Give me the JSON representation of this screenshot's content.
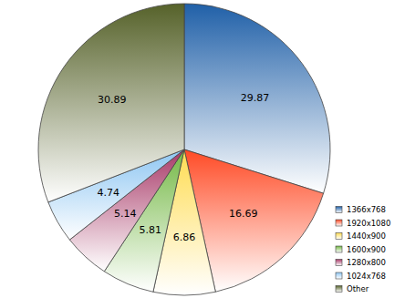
{
  "chart_data": {
    "type": "pie",
    "categories": [
      "1366x768",
      "1920x1080",
      "1440x900",
      "1600x900",
      "1280x800",
      "1024x768",
      "Other"
    ],
    "values": [
      29.87,
      16.69,
      6.86,
      5.81,
      5.14,
      4.74,
      30.89
    ],
    "colors": [
      "#2060a8",
      "#ff4a25",
      "#ffdc50",
      "#74b845",
      "#a83a68",
      "#8ec6f2",
      "#56622a"
    ],
    "data_labels": true,
    "legend": "bottom-right"
  }
}
